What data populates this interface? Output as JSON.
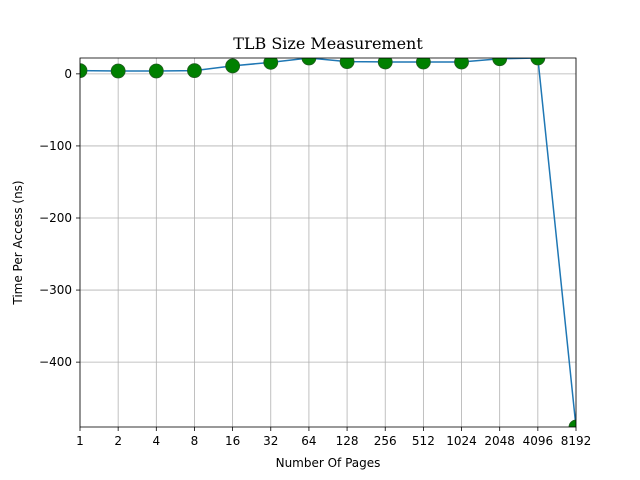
{
  "chart_data": {
    "type": "line",
    "title": "TLB Size Measurement",
    "xlabel": "Number Of Pages",
    "ylabel": "Time Per Access (ns)",
    "categories": [
      "1",
      "2",
      "4",
      "8",
      "16",
      "32",
      "64",
      "128",
      "256",
      "512",
      "1024",
      "2048",
      "4096",
      "8192"
    ],
    "values": [
      4.5,
      4.0,
      4.0,
      4.5,
      11.0,
      16.0,
      22.0,
      17.0,
      16.5,
      16.5,
      16.5,
      21.0,
      22.0,
      -490.0
    ],
    "ylim": [
      -490,
      22
    ],
    "yticks": [
      0,
      -100,
      -200,
      -300,
      -400
    ],
    "ytick_labels": [
      "0",
      "−100",
      "−200",
      "−300",
      "−400"
    ],
    "grid": true,
    "colors": {
      "line": "#1f77b4",
      "marker": "#008000"
    }
  }
}
